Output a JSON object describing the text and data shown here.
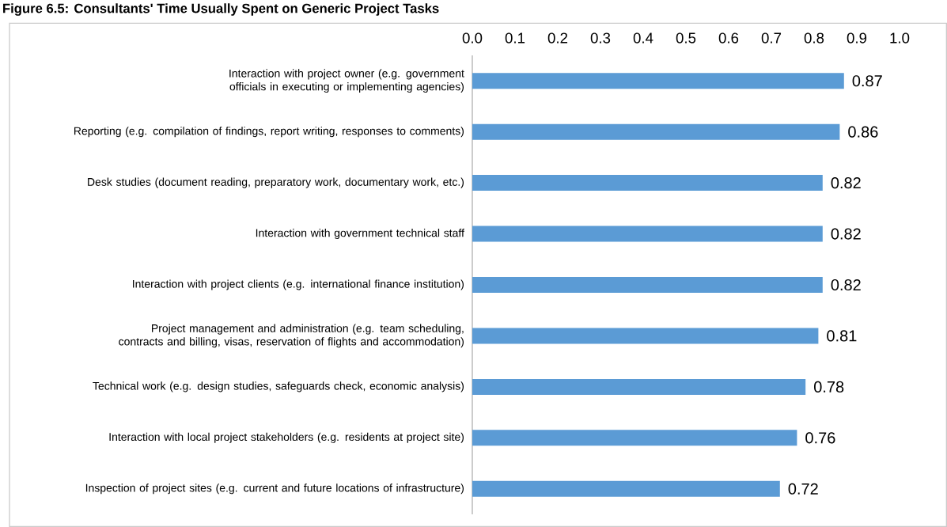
{
  "chart_data": {
    "type": "bar",
    "orientation": "horizontal",
    "title": "Figure 6.5: Consultants' Time Usually Spent on Generic Project Tasks",
    "categories": [
      "Interaction with project owner (e.g. government officials in executing or implementing agencies)",
      "Reporting (e.g. compilation of findings, report writing, responses to comments)",
      "Desk studies (document reading, preparatory work, documentary work, etc.)",
      "Interaction with government technical staff",
      "Interaction with project clients (e.g. international finance institution)",
      "Project management and administration (e.g. team scheduling, contracts and billing, visas, reservation of flights and accommodation)",
      "Technical work (e.g. design studies, safeguards check, economic analysis)",
      "Interaction with local project stakeholders (e.g. residents at project site)",
      "Inspection of project sites (e.g. current and future locations of infrastructure)"
    ],
    "values": [
      0.87,
      0.86,
      0.82,
      0.82,
      0.82,
      0.81,
      0.78,
      0.76,
      0.72
    ],
    "color": "#5b9bd5",
    "data_labels": true,
    "xlim": [
      0,
      1
    ],
    "xticks": [
      {
        "value": 0,
        "label": "0.0"
      },
      {
        "value": 0.1,
        "label": "0.1"
      },
      {
        "value": 0.2,
        "label": "0.2"
      },
      {
        "value": 0.3,
        "label": "0.3"
      },
      {
        "value": 0.4,
        "label": "0.4"
      },
      {
        "value": 0.5,
        "label": "0.5"
      },
      {
        "value": 0.6,
        "label": "0.6"
      },
      {
        "value": 0.7,
        "label": "0.7"
      },
      {
        "value": 0.8,
        "label": "0.8"
      },
      {
        "value": 0.9,
        "label": "0.9"
      },
      {
        "value": 1,
        "label": "1.0"
      }
    ]
  }
}
